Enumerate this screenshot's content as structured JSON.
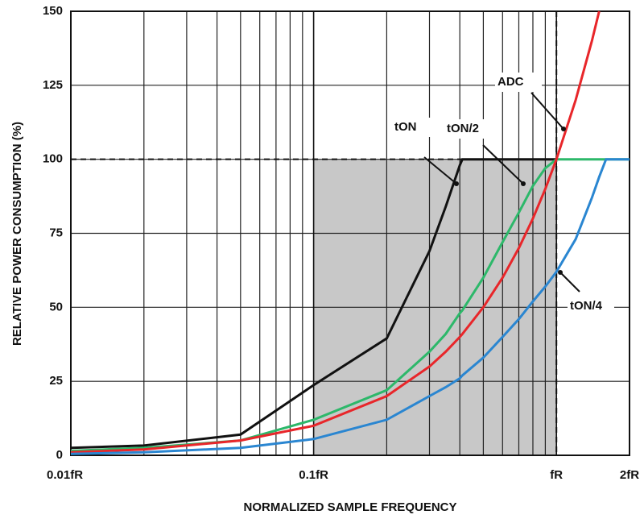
{
  "chart_data": {
    "type": "line",
    "y_label": "RELATIVE POWER CONSUMPTION (%)",
    "x_label": "NORMALIZED SAMPLE FREQUENCY",
    "x_log": true,
    "xlim": [
      0.01,
      2
    ],
    "ylim": [
      0,
      150
    ],
    "xticks": [
      {
        "value": 0.01,
        "label": "0.01fR"
      },
      {
        "value": 0.1,
        "label": "0.1fR"
      },
      {
        "value": 1,
        "label": "fR"
      },
      {
        "value": 2,
        "label": "2fR"
      }
    ],
    "xminorticks": [
      0.02,
      0.03,
      0.04,
      0.05,
      0.06,
      0.07,
      0.08,
      0.09,
      0.2,
      0.3,
      0.4,
      0.5,
      0.6,
      0.7,
      0.8,
      0.9
    ],
    "yticks": [
      0,
      25,
      50,
      75,
      100,
      125,
      150
    ],
    "grid": true,
    "shaded_region": {
      "x": [
        0.1,
        1
      ],
      "y": [
        0,
        100
      ],
      "color": "#c8c8c8"
    },
    "ref_lines": {
      "x": 1,
      "y": 100
    },
    "x": [
      0.01,
      0.02,
      0.05,
      0.1,
      0.2,
      0.3,
      0.35,
      0.4,
      0.41,
      0.5,
      0.6,
      0.7,
      0.8,
      0.9,
      1,
      1.2,
      1.4,
      1.5,
      1.6,
      1.8,
      2
    ],
    "series": [
      {
        "name": "tON",
        "color": "#111111",
        "values": [
          2.5,
          3.3,
          7,
          23.7,
          39.5,
          69,
          84,
          98,
          100,
          100,
          100,
          100,
          100,
          100,
          100,
          null,
          null,
          null,
          null,
          null,
          null
        ]
      },
      {
        "name": "tON/2",
        "color": "#2db86a",
        "values": [
          1.5,
          2.5,
          5,
          12,
          22,
          35,
          41,
          48,
          49,
          60,
          72,
          82,
          91,
          97,
          100,
          100,
          100,
          100,
          100,
          100,
          100
        ]
      },
      {
        "name": "ADC",
        "color": "#e8262a",
        "values": [
          1,
          2,
          5,
          10,
          20,
          30,
          35,
          40,
          41,
          50,
          60,
          70,
          80,
          90,
          100,
          120,
          140,
          150,
          null,
          null,
          null
        ]
      },
      {
        "name": "tON/4",
        "color": "#2a86d1",
        "values": [
          0.5,
          1,
          2.5,
          5.5,
          12,
          20,
          23,
          26,
          27,
          33,
          40,
          46,
          52,
          57,
          62,
          73,
          87,
          94,
          100,
          100,
          100
        ]
      }
    ]
  }
}
